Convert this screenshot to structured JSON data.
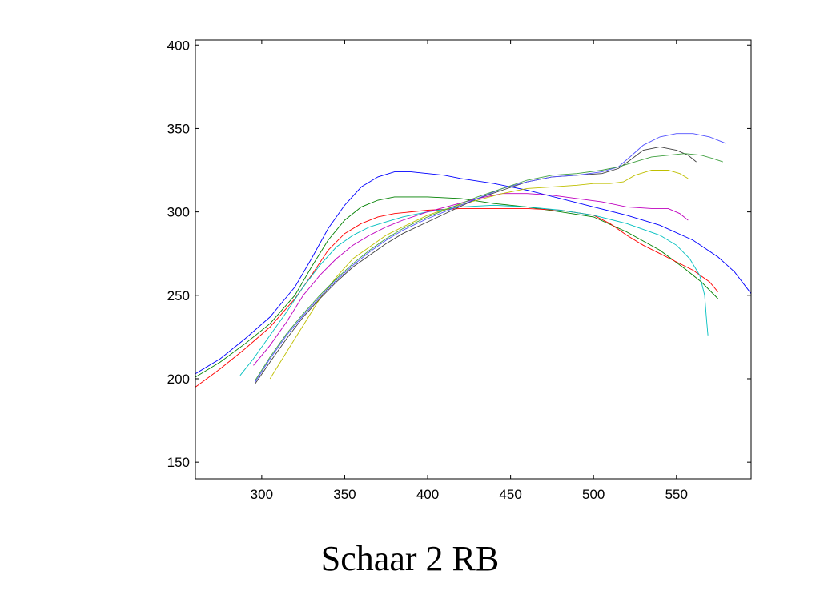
{
  "caption": "Schaar 2 RB",
  "chart_data": {
    "type": "line",
    "title": "",
    "xlabel": "",
    "ylabel": "",
    "xlim": [
      260,
      595
    ],
    "ylim": [
      140,
      403
    ],
    "grid": false,
    "legend": "none",
    "xticks": [
      300,
      350,
      400,
      450,
      500,
      550
    ],
    "yticks": [
      150,
      200,
      250,
      300,
      350,
      400
    ],
    "series": [
      {
        "color": "#0000ff",
        "points": [
          [
            260,
            203
          ],
          [
            275,
            212
          ],
          [
            290,
            224
          ],
          [
            305,
            237
          ],
          [
            320,
            255
          ],
          [
            330,
            272
          ],
          [
            340,
            290
          ],
          [
            350,
            304
          ],
          [
            360,
            315
          ],
          [
            370,
            321
          ],
          [
            380,
            324
          ],
          [
            390,
            324
          ],
          [
            400,
            323
          ],
          [
            410,
            322
          ],
          [
            420,
            320
          ],
          [
            440,
            317
          ],
          [
            460,
            313
          ],
          [
            480,
            308
          ],
          [
            500,
            303
          ],
          [
            520,
            298
          ],
          [
            540,
            292
          ],
          [
            560,
            283
          ],
          [
            575,
            273
          ],
          [
            585,
            264
          ],
          [
            595,
            251
          ]
        ]
      },
      {
        "color": "#008000",
        "points": [
          [
            260,
            201
          ],
          [
            275,
            210
          ],
          [
            290,
            221
          ],
          [
            305,
            233
          ],
          [
            320,
            250
          ],
          [
            330,
            267
          ],
          [
            340,
            283
          ],
          [
            350,
            295
          ],
          [
            360,
            303
          ],
          [
            370,
            307
          ],
          [
            380,
            309
          ],
          [
            400,
            309
          ],
          [
            420,
            308
          ],
          [
            440,
            305
          ],
          [
            460,
            303
          ],
          [
            480,
            300
          ],
          [
            500,
            297
          ],
          [
            520,
            288
          ],
          [
            540,
            277
          ],
          [
            555,
            266
          ],
          [
            565,
            258
          ],
          [
            570,
            253
          ],
          [
            575,
            248
          ]
        ]
      },
      {
        "color": "#ff0000",
        "points": [
          [
            260,
            195
          ],
          [
            275,
            206
          ],
          [
            290,
            218
          ],
          [
            305,
            231
          ],
          [
            320,
            248
          ],
          [
            330,
            262
          ],
          [
            340,
            277
          ],
          [
            350,
            287
          ],
          [
            360,
            293
          ],
          [
            370,
            297
          ],
          [
            380,
            299
          ],
          [
            400,
            301
          ],
          [
            420,
            302
          ],
          [
            440,
            302
          ],
          [
            460,
            302
          ],
          [
            480,
            301
          ],
          [
            500,
            298
          ],
          [
            510,
            293
          ],
          [
            520,
            286
          ],
          [
            530,
            280
          ],
          [
            540,
            275
          ],
          [
            550,
            270
          ],
          [
            560,
            265
          ],
          [
            570,
            258
          ],
          [
            575,
            252
          ]
        ]
      },
      {
        "color": "#00bfbf",
        "points": [
          [
            287,
            202
          ],
          [
            295,
            212
          ],
          [
            305,
            226
          ],
          [
            315,
            240
          ],
          [
            325,
            255
          ],
          [
            335,
            268
          ],
          [
            345,
            279
          ],
          [
            355,
            286
          ],
          [
            365,
            291
          ],
          [
            375,
            294
          ],
          [
            385,
            297
          ],
          [
            400,
            300
          ],
          [
            420,
            303
          ],
          [
            440,
            304
          ],
          [
            460,
            303
          ],
          [
            480,
            301
          ],
          [
            500,
            298
          ],
          [
            520,
            293
          ],
          [
            540,
            286
          ],
          [
            550,
            280
          ],
          [
            558,
            272
          ],
          [
            564,
            262
          ],
          [
            567,
            250
          ],
          [
            568,
            237
          ],
          [
            569,
            226
          ]
        ]
      },
      {
        "color": "#bf00bf",
        "points": [
          [
            295,
            208
          ],
          [
            305,
            220
          ],
          [
            315,
            234
          ],
          [
            325,
            250
          ],
          [
            335,
            262
          ],
          [
            345,
            272
          ],
          [
            355,
            280
          ],
          [
            365,
            286
          ],
          [
            375,
            291
          ],
          [
            385,
            295
          ],
          [
            400,
            300
          ],
          [
            415,
            304
          ],
          [
            430,
            308
          ],
          [
            445,
            311
          ],
          [
            460,
            311
          ],
          [
            475,
            310
          ],
          [
            490,
            308
          ],
          [
            505,
            306
          ],
          [
            520,
            303
          ],
          [
            535,
            302
          ],
          [
            545,
            302
          ],
          [
            552,
            299
          ],
          [
            557,
            295
          ]
        ]
      },
      {
        "color": "#bfbf00",
        "points": [
          [
            305,
            200
          ],
          [
            315,
            216
          ],
          [
            325,
            232
          ],
          [
            335,
            248
          ],
          [
            345,
            261
          ],
          [
            355,
            272
          ],
          [
            365,
            279
          ],
          [
            375,
            286
          ],
          [
            385,
            291
          ],
          [
            400,
            298
          ],
          [
            415,
            303
          ],
          [
            430,
            307
          ],
          [
            445,
            311
          ],
          [
            460,
            314
          ],
          [
            475,
            315
          ],
          [
            490,
            316
          ],
          [
            500,
            317
          ],
          [
            510,
            317
          ],
          [
            518,
            318
          ],
          [
            525,
            322
          ],
          [
            535,
            325
          ],
          [
            545,
            325
          ],
          [
            552,
            323
          ],
          [
            557,
            320
          ]
        ]
      },
      {
        "color": "#404040",
        "points": [
          [
            296,
            197
          ],
          [
            305,
            210
          ],
          [
            315,
            224
          ],
          [
            325,
            237
          ],
          [
            335,
            248
          ],
          [
            345,
            258
          ],
          [
            355,
            267
          ],
          [
            365,
            274
          ],
          [
            375,
            281
          ],
          [
            385,
            287
          ],
          [
            400,
            294
          ],
          [
            415,
            301
          ],
          [
            430,
            308
          ],
          [
            445,
            313
          ],
          [
            460,
            318
          ],
          [
            475,
            321
          ],
          [
            490,
            322
          ],
          [
            505,
            323
          ],
          [
            515,
            326
          ],
          [
            522,
            331
          ],
          [
            530,
            337
          ],
          [
            540,
            339
          ],
          [
            550,
            337
          ],
          [
            557,
            334
          ],
          [
            562,
            330
          ]
        ]
      },
      {
        "color": "#5050ff",
        "points": [
          [
            296,
            198
          ],
          [
            305,
            212
          ],
          [
            315,
            226
          ],
          [
            325,
            238
          ],
          [
            335,
            249
          ],
          [
            345,
            259
          ],
          [
            355,
            268
          ],
          [
            365,
            276
          ],
          [
            375,
            283
          ],
          [
            385,
            289
          ],
          [
            400,
            296
          ],
          [
            415,
            302
          ],
          [
            430,
            308
          ],
          [
            445,
            314
          ],
          [
            460,
            318
          ],
          [
            475,
            321
          ],
          [
            490,
            322
          ],
          [
            505,
            324
          ],
          [
            515,
            327
          ],
          [
            522,
            333
          ],
          [
            530,
            340
          ],
          [
            540,
            345
          ],
          [
            550,
            347
          ],
          [
            560,
            347
          ],
          [
            570,
            345
          ],
          [
            580,
            341
          ]
        ]
      },
      {
        "color": "#40a040",
        "points": [
          [
            296,
            199
          ],
          [
            305,
            213
          ],
          [
            315,
            227
          ],
          [
            325,
            239
          ],
          [
            335,
            250
          ],
          [
            345,
            260
          ],
          [
            355,
            269
          ],
          [
            365,
            277
          ],
          [
            375,
            284
          ],
          [
            385,
            290
          ],
          [
            400,
            297
          ],
          [
            415,
            303
          ],
          [
            430,
            309
          ],
          [
            445,
            314
          ],
          [
            460,
            319
          ],
          [
            475,
            322
          ],
          [
            490,
            323
          ],
          [
            505,
            325
          ],
          [
            515,
            327
          ],
          [
            525,
            330
          ],
          [
            535,
            333
          ],
          [
            545,
            334
          ],
          [
            555,
            335
          ],
          [
            565,
            334
          ],
          [
            572,
            332
          ],
          [
            578,
            330
          ]
        ]
      }
    ]
  }
}
